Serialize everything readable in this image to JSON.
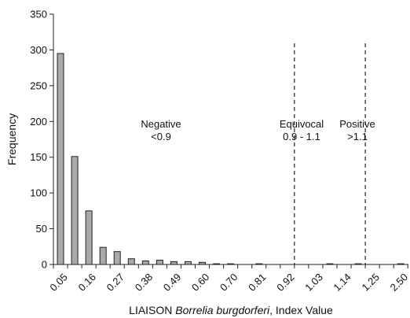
{
  "chart_data": {
    "type": "bar",
    "ylabel": "Frequency",
    "xlabel_prefix": "LIAISON ",
    "xlabel_italic": "Borrelia burgdorferi",
    "xlabel_suffix": ", Index Value",
    "ylim": [
      0,
      350
    ],
    "yticks": [
      0,
      50,
      100,
      150,
      200,
      250,
      300,
      350
    ],
    "xtick_labels": [
      "0.05",
      "0.16",
      "0.27",
      "0.38",
      "0.49",
      "0.60",
      "0.70",
      "0.81",
      "0.92",
      "1.03",
      "1.14",
      "1.25",
      "2.50"
    ],
    "values": [
      295,
      151,
      75,
      24,
      18,
      8,
      5,
      6,
      4,
      4,
      3,
      1,
      1,
      0,
      1,
      0,
      0,
      0,
      0,
      1,
      0,
      1,
      0,
      0,
      1,
      1
    ],
    "regions": [
      {
        "name": "Negative",
        "range": "<0.9"
      },
      {
        "name": "Equivocal",
        "range": "0.9 - 1.1"
      },
      {
        "name": "Positive",
        "range": ">1.1"
      }
    ],
    "divider_after_bin": [
      16,
      21
    ],
    "grid": false
  }
}
